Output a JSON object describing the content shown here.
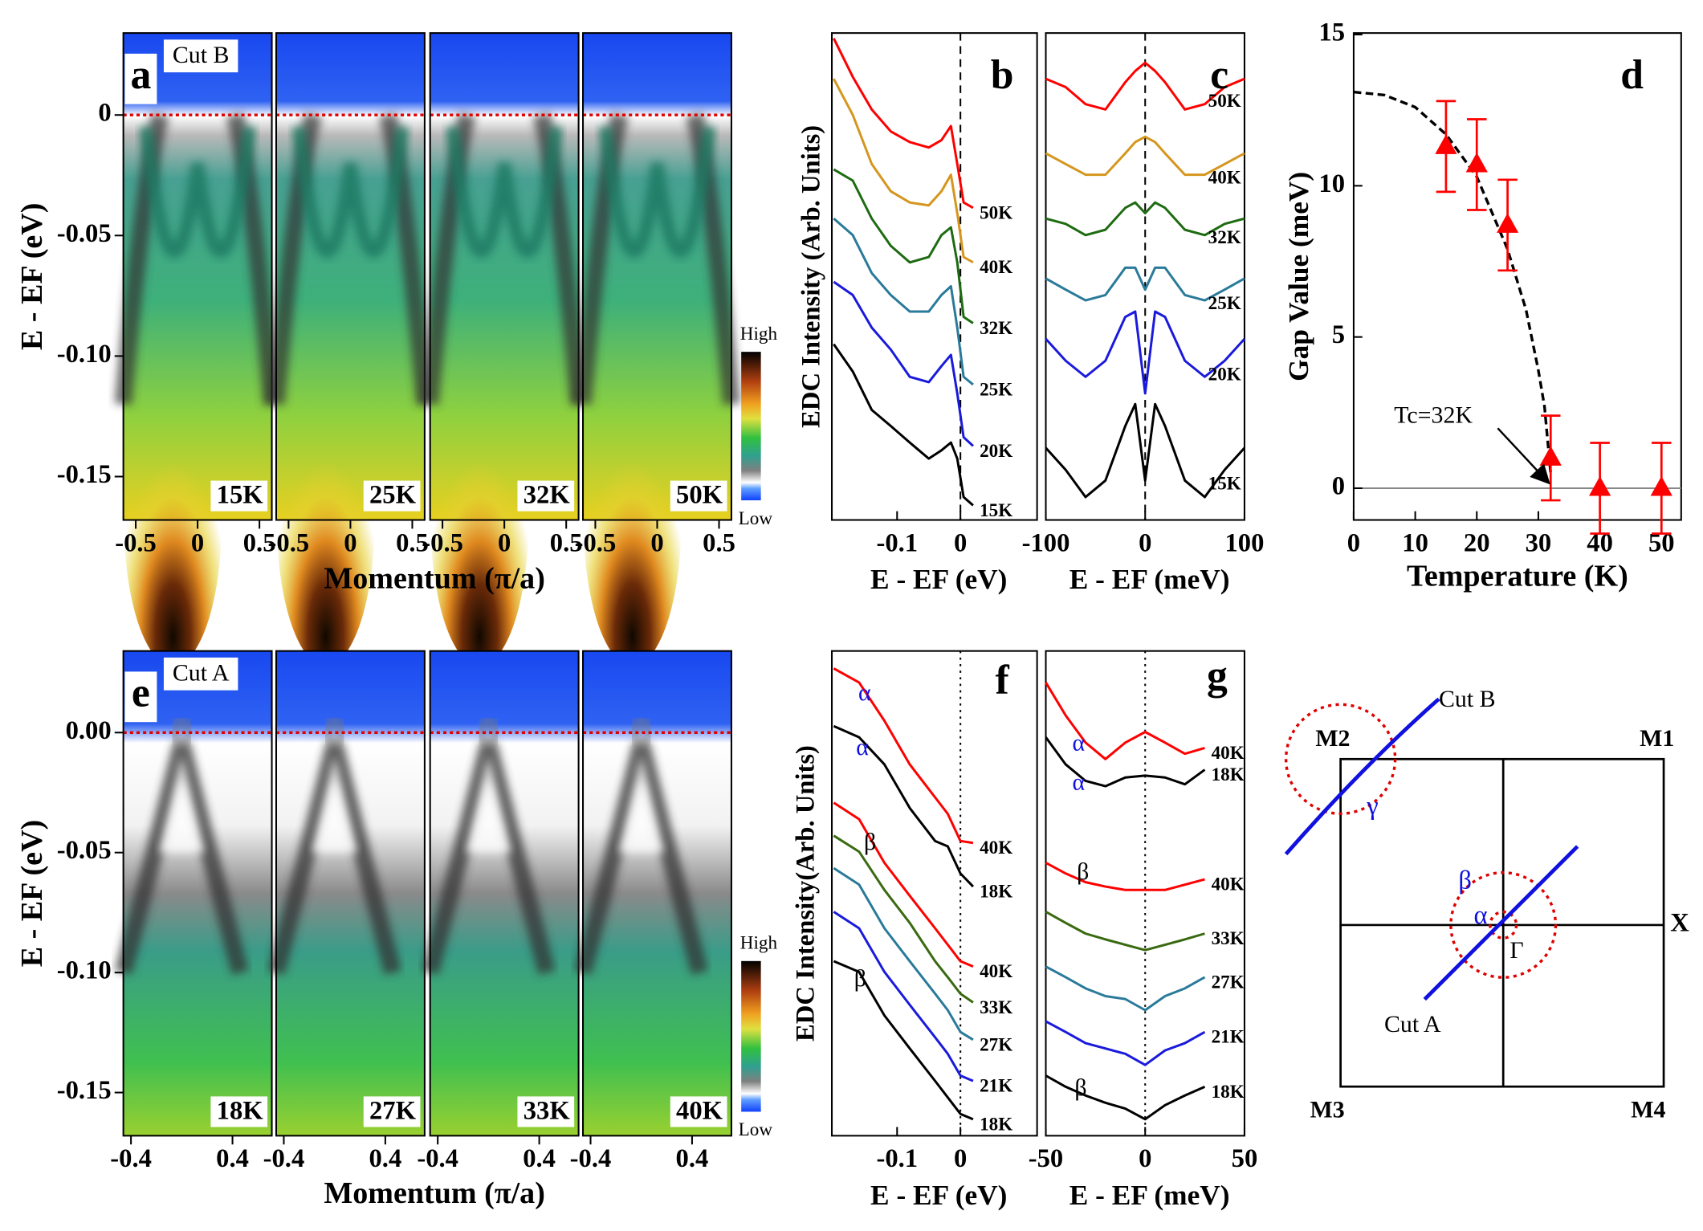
{
  "chart_data": [
    {
      "type": "heatmap",
      "panel": "a",
      "cut": "Cut B",
      "temperatures": [
        "15K",
        "25K",
        "32K",
        "50K"
      ],
      "xlabel": "Momentum (π/a)",
      "ylabel": "E - EF (eV)",
      "xlim": [
        -0.6,
        0.6
      ],
      "xticks": [
        -0.5,
        0,
        0.5
      ],
      "ylim": [
        -0.168,
        0.034
      ],
      "yticks": [
        0,
        -0.05,
        {
          "value": -0.1,
          "label": "-0.10"
        },
        -0.15
      ],
      "colorbar": {
        "high": "High",
        "low": "Low"
      },
      "fermi_color": "#e00000"
    },
    {
      "type": "line",
      "panel": "b",
      "xlabel": "E - EF (eV)",
      "ylabel": "EDC Intensity (Arb. Units)",
      "xlim": [
        -0.203,
        0.121
      ],
      "xticks": [
        -0.1,
        0
      ],
      "ylim": [
        0,
        100
      ],
      "x": [
        -0.2,
        -0.17,
        -0.14,
        -0.11,
        -0.08,
        -0.05,
        -0.03,
        -0.015,
        -0.005,
        0.005,
        0.02
      ],
      "series": [
        {
          "name": "50K",
          "color": "#ff0000",
          "values": [
            98.9,
            91.0,
            84.3,
            79.8,
            77.6,
            76.5,
            78.0,
            80.9,
            73.1,
            65.2,
            64.1
          ]
        },
        {
          "name": "40K",
          "color": "#d4961e",
          "values": [
            90.6,
            83.2,
            73.1,
            67.5,
            65.2,
            64.6,
            67.5,
            70.9,
            63.0,
            54.0,
            52.9
          ]
        },
        {
          "name": "32K",
          "color": "#1e6b12",
          "values": [
            72.0,
            69.7,
            61.9,
            56.3,
            52.9,
            54.0,
            58.5,
            60.1,
            52.9,
            41.7,
            40.4
          ]
        },
        {
          "name": "25K",
          "color": "#2a7a9a",
          "values": [
            61.9,
            58.5,
            50.7,
            46.2,
            42.8,
            42.8,
            46.2,
            48.0,
            39.5,
            29.4,
            27.8
          ]
        },
        {
          "name": "20K",
          "color": "#1a1adc",
          "values": [
            48.9,
            46.2,
            39.5,
            35.0,
            29.4,
            28.3,
            31.6,
            33.9,
            26.0,
            17.0,
            15.2
          ]
        },
        {
          "name": "15K",
          "color": "#000000",
          "values": [
            36.1,
            30.5,
            22.6,
            19.3,
            15.9,
            12.6,
            14.3,
            15.9,
            12.6,
            4.7,
            3.0
          ]
        }
      ]
    },
    {
      "type": "line",
      "panel": "c",
      "xlabel": "E - EF (meV)",
      "xlim": [
        -100,
        100
      ],
      "xticks": [
        -100,
        0,
        100
      ],
      "ylim": [
        0,
        100
      ],
      "x": [
        -100,
        -80,
        -60,
        -40,
        -20,
        -10,
        0,
        10,
        20,
        40,
        60,
        80,
        100
      ],
      "series": [
        {
          "name": "50K",
          "color": "#ff0000",
          "values": [
            90.6,
            88.9,
            85.4,
            84.3,
            89.9,
            92.2,
            93.9,
            92.2,
            89.9,
            84.3,
            85.4,
            88.9,
            90.6
          ]
        },
        {
          "name": "40K",
          "color": "#d4961e",
          "values": [
            75.3,
            73.1,
            70.9,
            70.9,
            75.3,
            77.6,
            78.7,
            77.6,
            75.3,
            70.9,
            70.9,
            73.1,
            75.3
          ]
        },
        {
          "name": "32K",
          "color": "#1e6b12",
          "values": [
            61.9,
            60.8,
            58.5,
            59.6,
            64.1,
            65.2,
            63.0,
            65.2,
            64.1,
            59.6,
            58.5,
            60.8,
            61.9
          ]
        },
        {
          "name": "25K",
          "color": "#2a7a9a",
          "values": [
            49.6,
            47.3,
            45.1,
            46.2,
            51.8,
            51.8,
            47.3,
            51.8,
            51.8,
            46.2,
            45.1,
            47.3,
            49.6
          ]
        },
        {
          "name": "20K",
          "color": "#1a1adc",
          "values": [
            37.2,
            32.7,
            29.4,
            32.7,
            41.7,
            42.8,
            26.0,
            42.8,
            41.7,
            32.7,
            29.4,
            32.7,
            37.2
          ]
        },
        {
          "name": "15K",
          "color": "#000000",
          "values": [
            14.8,
            10.3,
            4.7,
            8.1,
            19.3,
            23.8,
            8.1,
            23.8,
            19.3,
            8.1,
            4.7,
            10.3,
            14.8
          ]
        }
      ]
    },
    {
      "type": "scatter",
      "panel": "d",
      "xlabel": "Temperature (K)",
      "ylabel": "Gap Value (meV)",
      "xlim": [
        0,
        53.2
      ],
      "xticks": [
        0,
        10,
        20,
        30,
        40,
        50
      ],
      "ylim": [
        -1.05,
        15.05
      ],
      "yticks": [
        0,
        5,
        10,
        15
      ],
      "x": [
        15,
        20,
        25,
        32,
        40,
        50
      ],
      "values": [
        11.3,
        10.7,
        8.7,
        1.0,
        0,
        0
      ],
      "errors": [
        1.5,
        1.5,
        1.5,
        1.4,
        1.5,
        1.5
      ],
      "color": "#ff0000",
      "fit": {
        "x": [
          0,
          5,
          10,
          15,
          20,
          25,
          28,
          30,
          31,
          32
        ],
        "values": [
          13.1,
          13.0,
          12.6,
          11.7,
          10.3,
          7.9,
          5.9,
          3.9,
          2.7,
          0.5
        ]
      },
      "annotation": "Tc=32K"
    },
    {
      "type": "heatmap",
      "panel": "e",
      "cut": "Cut A",
      "temperatures": [
        "18K",
        "27K",
        "33K",
        "40K"
      ],
      "xlabel": "Momentum (π/a)",
      "ylabel": "E - EF (eV)",
      "xlim": [
        -0.46,
        0.71
      ],
      "xticks": [
        -0.4,
        0.4
      ],
      "ylim": [
        -0.168,
        0.034
      ],
      "yticks": [
        {
          "value": 0,
          "label": "0.00"
        },
        -0.05,
        {
          "value": -0.1,
          "label": "-0.10"
        },
        -0.15
      ],
      "colorbar": {
        "high": "High",
        "low": "Low"
      },
      "fermi_color": "#e00000"
    },
    {
      "type": "line",
      "panel": "f",
      "xlabel": "E - EF (eV)",
      "ylabel": "EDC Intensity(Arb. Units)",
      "xlim": [
        -0.203,
        0.121
      ],
      "xticks": [
        -0.1,
        0
      ],
      "ylim": [
        0,
        100
      ],
      "x": [
        -0.2,
        -0.16,
        -0.12,
        -0.08,
        -0.04,
        -0.02,
        0,
        0.02
      ],
      "series": [
        {
          "name": "40K",
          "color": "#ff0000",
          "values": [
            96.4,
            93.5,
            85.6,
            76.6,
            69.8,
            66.4,
            60.8,
            60.4
          ]
        },
        {
          "name": "18K",
          "color": "#000000",
          "values": [
            84.5,
            82.2,
            76.6,
            67.6,
            60.8,
            59.7,
            54.1,
            51.4
          ]
        },
        {
          "name": "40K",
          "color": "#ff0000",
          "values": [
            68.7,
            65.3,
            56.3,
            49.5,
            42.8,
            39.4,
            36.0,
            34.9
          ]
        },
        {
          "name": "33K",
          "color": "#3a6a10",
          "values": [
            61.9,
            58.6,
            50.7,
            43.9,
            36.0,
            32.7,
            29.3,
            27.5
          ]
        },
        {
          "name": "27K",
          "color": "#2a7a9a",
          "values": [
            55.2,
            51.8,
            42.8,
            36.0,
            29.3,
            25.9,
            21.4,
            19.8
          ]
        },
        {
          "name": "21K",
          "color": "#1a1adc",
          "values": [
            46.2,
            42.8,
            33.8,
            27.0,
            20.3,
            16.9,
            12.4,
            11.3
          ]
        },
        {
          "name": "18K",
          "color": "#000000",
          "values": [
            36.0,
            33.8,
            24.8,
            18.0,
            11.3,
            7.9,
            4.5,
            3.4
          ]
        }
      ],
      "annotations": [
        "α",
        "α",
        "β",
        "β"
      ]
    },
    {
      "type": "line",
      "panel": "g",
      "xlabel": "E - EF (meV)",
      "xlim": [
        -50,
        50
      ],
      "xticks": [
        -50,
        0,
        50
      ],
      "ylim": [
        0,
        100
      ],
      "x": [
        -50,
        -40,
        -30,
        -20,
        -10,
        0,
        10,
        20,
        30
      ],
      "series": [
        {
          "name": "40K",
          "color": "#ff0000",
          "values": [
            93.5,
            86.7,
            81.1,
            77.7,
            81.1,
            83.3,
            81.1,
            78.8,
            80.0
          ]
        },
        {
          "name": "18K",
          "color": "#000000",
          "values": [
            82.2,
            76.6,
            73.2,
            72.1,
            73.9,
            74.3,
            73.9,
            72.5,
            75.5
          ]
        },
        {
          "name": "40K",
          "color": "#ff0000",
          "values": [
            56.3,
            54.1,
            52.3,
            51.4,
            50.7,
            50.7,
            50.7,
            51.8,
            52.9
          ]
        },
        {
          "name": "33K",
          "color": "#3a6a10",
          "values": [
            46.2,
            43.9,
            41.7,
            40.5,
            39.4,
            38.3,
            39.4,
            40.5,
            41.7
          ]
        },
        {
          "name": "27K",
          "color": "#2a7a9a",
          "values": [
            34.9,
            32.7,
            30.4,
            28.8,
            28.2,
            25.9,
            28.8,
            30.4,
            32.7
          ]
        },
        {
          "name": "21K",
          "color": "#1a1adc",
          "values": [
            23.6,
            21.4,
            19.1,
            18.0,
            16.9,
            14.6,
            17.6,
            19.1,
            21.4
          ]
        },
        {
          "name": "18K",
          "color": "#000000",
          "values": [
            12.4,
            10.1,
            8.3,
            6.8,
            5.6,
            3.4,
            6.3,
            8.3,
            10.1
          ]
        }
      ],
      "annotations": [
        "α",
        "α",
        "β",
        "β"
      ]
    }
  ],
  "diagram": {
    "cut_b": "Cut B",
    "cut_a": "Cut A",
    "m1": "M1",
    "m2": "M2",
    "m3": "M3",
    "m4": "M4",
    "x": "X",
    "gamma_point": "Γ",
    "gamma": "γ",
    "alpha": "α",
    "beta": "β"
  }
}
